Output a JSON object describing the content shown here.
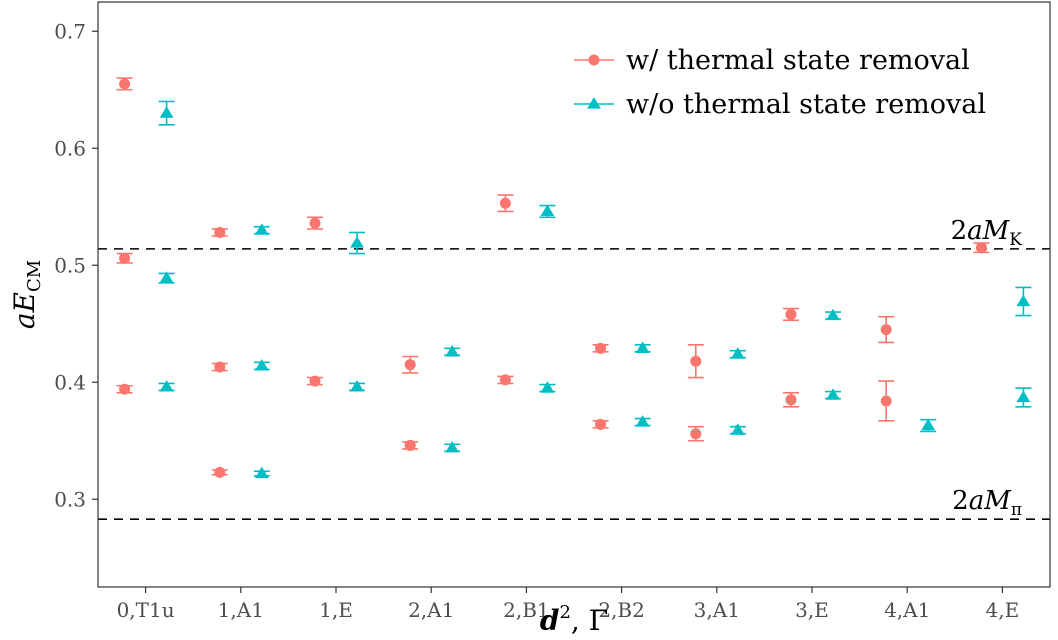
{
  "chart_data": {
    "type": "scatter",
    "xlabel_main": "d",
    "xlabel_sup": "2",
    "xlabel_rest": ", Γ",
    "ylabel_main": "aE",
    "ylabel_sub": "CM",
    "categories": [
      "0,T1u",
      "1,A1",
      "1,E",
      "2,A1",
      "2,B1",
      "2,B2",
      "3,A1",
      "3,E",
      "4,A1",
      "4,E"
    ],
    "ylim": [
      0.225,
      0.725
    ],
    "yticks": [
      0.3,
      0.4,
      0.5,
      0.6,
      0.7
    ],
    "ytick_labels": [
      "0.3",
      "0.4",
      "0.5",
      "0.6",
      "0.7"
    ],
    "grid": false,
    "legend_position": "top-right",
    "series": [
      {
        "name": "w/ thermal state removal",
        "color": "#F8766D",
        "marker": "circle",
        "points": [
          {
            "cat": 0,
            "y": 0.655,
            "err": 0.005
          },
          {
            "cat": 0,
            "y": 0.506,
            "err": 0.004
          },
          {
            "cat": 0,
            "y": 0.394,
            "err": 0.003
          },
          {
            "cat": 1,
            "y": 0.528,
            "err": 0.003
          },
          {
            "cat": 1,
            "y": 0.413,
            "err": 0.003
          },
          {
            "cat": 1,
            "y": 0.323,
            "err": 0.002
          },
          {
            "cat": 2,
            "y": 0.536,
            "err": 0.005
          },
          {
            "cat": 2,
            "y": 0.401,
            "err": 0.003
          },
          {
            "cat": 3,
            "y": 0.415,
            "err": 0.007
          },
          {
            "cat": 3,
            "y": 0.346,
            "err": 0.003
          },
          {
            "cat": 4,
            "y": 0.553,
            "err": 0.007
          },
          {
            "cat": 4,
            "y": 0.402,
            "err": 0.003
          },
          {
            "cat": 5,
            "y": 0.429,
            "err": 0.003
          },
          {
            "cat": 5,
            "y": 0.364,
            "err": 0.003
          },
          {
            "cat": 6,
            "y": 0.418,
            "err": 0.014
          },
          {
            "cat": 6,
            "y": 0.356,
            "err": 0.006
          },
          {
            "cat": 7,
            "y": 0.458,
            "err": 0.005
          },
          {
            "cat": 7,
            "y": 0.385,
            "err": 0.006
          },
          {
            "cat": 8,
            "y": 0.445,
            "err": 0.011
          },
          {
            "cat": 8,
            "y": 0.384,
            "err": 0.017
          },
          {
            "cat": 9,
            "y": 0.515,
            "err": 0.004
          }
        ]
      },
      {
        "name": "w/o thermal state removal",
        "color": "#00BFC4",
        "marker": "triangle",
        "points": [
          {
            "cat": 0,
            "y": 0.63,
            "err": 0.01
          },
          {
            "cat": 0,
            "y": 0.489,
            "err": 0.004
          },
          {
            "cat": 0,
            "y": 0.396,
            "err": 0.003
          },
          {
            "cat": 1,
            "y": 0.53,
            "err": 0.003
          },
          {
            "cat": 1,
            "y": 0.414,
            "err": 0.003
          },
          {
            "cat": 1,
            "y": 0.322,
            "err": 0.002
          },
          {
            "cat": 2,
            "y": 0.519,
            "err": 0.009
          },
          {
            "cat": 2,
            "y": 0.396,
            "err": 0.003
          },
          {
            "cat": 3,
            "y": 0.426,
            "err": 0.003
          },
          {
            "cat": 3,
            "y": 0.344,
            "err": 0.003
          },
          {
            "cat": 4,
            "y": 0.546,
            "err": 0.005
          },
          {
            "cat": 4,
            "y": 0.395,
            "err": 0.003
          },
          {
            "cat": 5,
            "y": 0.429,
            "err": 0.003
          },
          {
            "cat": 5,
            "y": 0.366,
            "err": 0.003
          },
          {
            "cat": 6,
            "y": 0.424,
            "err": 0.003
          },
          {
            "cat": 6,
            "y": 0.359,
            "err": 0.003
          },
          {
            "cat": 7,
            "y": 0.457,
            "err": 0.003
          },
          {
            "cat": 7,
            "y": 0.389,
            "err": 0.003
          },
          {
            "cat": 8,
            "y": 0.363,
            "err": 0.005
          },
          {
            "cat": 9,
            "y": 0.469,
            "err": 0.012
          },
          {
            "cat": 9,
            "y": 0.387,
            "err": 0.008
          }
        ]
      }
    ],
    "reference_lines": [
      {
        "y": 0.514,
        "label_main": "2aM",
        "label_sub": "K"
      },
      {
        "y": 0.283,
        "label_main": "2aM",
        "label_sub": "π"
      }
    ]
  }
}
